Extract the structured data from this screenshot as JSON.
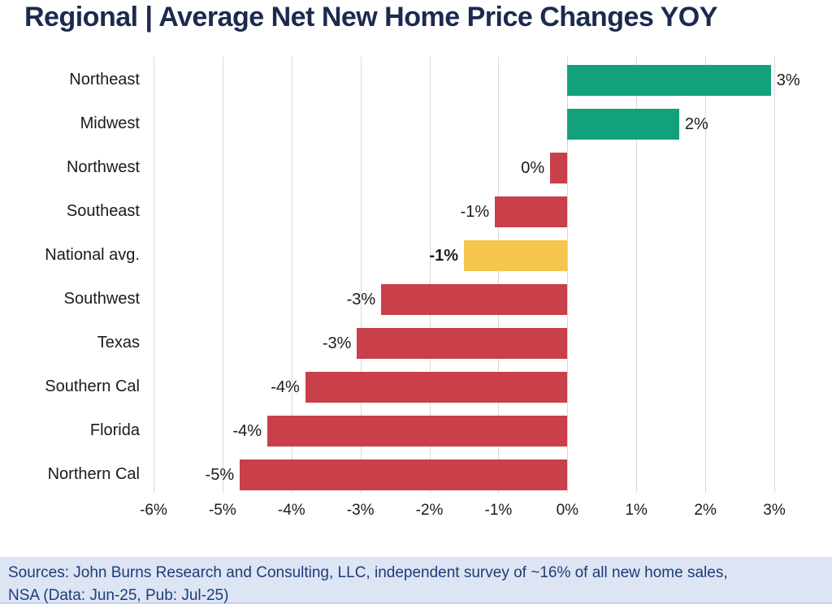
{
  "title": "Regional | Average Net New Home Price Changes YOY",
  "title_color": "#1C2A4E",
  "chart_data": {
    "type": "bar",
    "orientation": "horizontal",
    "title": "Regional | Average Net New Home Price Changes YOY",
    "xlabel": "",
    "ylabel": "",
    "xlim": [
      -6,
      3
    ],
    "grid": "vertical-gridlines-only",
    "legend": "none",
    "x_tick_labels": [
      "-6%",
      "-5%",
      "-4%",
      "-3%",
      "-2%",
      "-1%",
      "0%",
      "1%",
      "2%",
      "3%"
    ],
    "x_tick_values": [
      -6,
      -5,
      -4,
      -3,
      -2,
      -1,
      0,
      1,
      2,
      3
    ],
    "bars": [
      {
        "category": "Northeast",
        "value": 2.95,
        "label": "3%",
        "color": "#12A17B",
        "label_bold": false
      },
      {
        "category": "Midwest",
        "value": 1.62,
        "label": "2%",
        "color": "#12A17B",
        "label_bold": false
      },
      {
        "category": "Northwest",
        "value": -0.25,
        "label": "0%",
        "color": "#C9404A",
        "label_bold": false
      },
      {
        "category": "Southeast",
        "value": -1.05,
        "label": "-1%",
        "color": "#C9404A",
        "label_bold": false
      },
      {
        "category": "National avg.",
        "value": -1.5,
        "label": "-1%",
        "color": "#F6C54E",
        "label_bold": true
      },
      {
        "category": "Southwest",
        "value": -2.7,
        "label": "-3%",
        "color": "#C9404A",
        "label_bold": false
      },
      {
        "category": "Texas",
        "value": -3.05,
        "label": "-3%",
        "color": "#C9404A",
        "label_bold": false
      },
      {
        "category": "Southern Cal",
        "value": -3.8,
        "label": "-4%",
        "color": "#C9404A",
        "label_bold": false
      },
      {
        "category": "Florida",
        "value": -4.35,
        "label": "-4%",
        "color": "#C9404A",
        "label_bold": false
      },
      {
        "category": "Northern Cal",
        "value": -4.75,
        "label": "-5%",
        "color": "#C9404A",
        "label_bold": false
      }
    ],
    "colors": {
      "positive": "#12A17B",
      "negative": "#C9404A",
      "national_avg_highlight": "#F6C54E",
      "gridline": "#D8D8D8"
    }
  },
  "footer": {
    "line1": "Sources: John Burns Research and Consulting, LLC, independent survey of ~16% of all new home sales,",
    "line2": "NSA (Data: Jun-25, Pub: Jul-25)",
    "background": "#DDE4F3",
    "text_color": "#1C3D78"
  }
}
